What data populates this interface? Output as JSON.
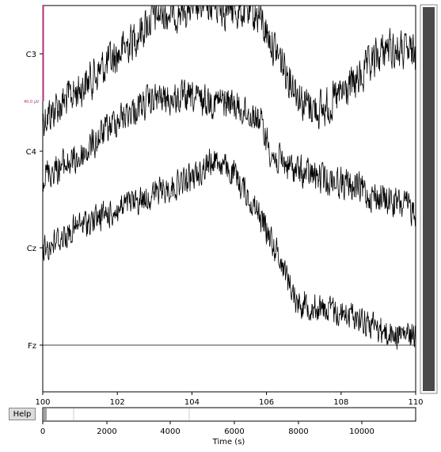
{
  "help_label": "Help",
  "scale_bar_label": "40.0 µV",
  "channels": [
    {
      "name": "C3"
    },
    {
      "name": "C4"
    },
    {
      "name": "Cz"
    },
    {
      "name": "Fz"
    }
  ],
  "main_x_ticks": [
    "100",
    "102",
    "104",
    "106",
    "108",
    "110"
  ],
  "overview": {
    "x_ticks": [
      "0",
      "2000",
      "4000",
      "6000",
      "8000",
      "10000"
    ],
    "xlabel": "Time (s)"
  },
  "colors": {
    "trace": "#000000",
    "scale_bar": "#b0307a",
    "scrollbar": "#4a4a4a",
    "overview_view": "#a0a0a0"
  },
  "chart_data": {
    "type": "line",
    "xlabel": "",
    "xlim": [
      100,
      110
    ],
    "x_ticks": [
      100,
      102,
      104,
      106,
      108,
      110
    ],
    "series": [
      {
        "name": "C3",
        "approx_mean": 30,
        "approx_noise": 25
      },
      {
        "name": "C4",
        "approx_mean": 20,
        "approx_noise": 18
      },
      {
        "name": "Cz",
        "approx_mean": 10,
        "approx_noise": 15
      },
      {
        "name": "Fz",
        "approx_mean": 0,
        "approx_noise": 0
      }
    ],
    "grid": false
  }
}
